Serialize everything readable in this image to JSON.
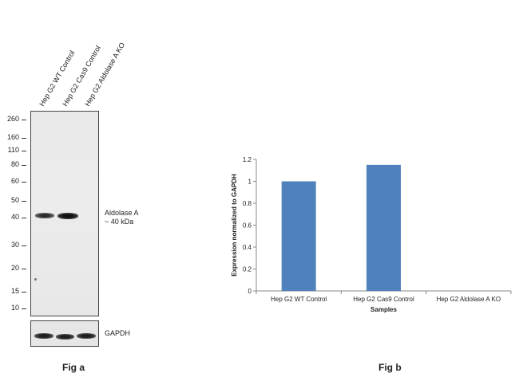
{
  "fig_a": {
    "caption": "Fig a",
    "lanes": [
      "Hep G2 WT Control",
      "Hep G2 Cas9 Control",
      "Hep G2 Aldolase A KO"
    ],
    "mw_markers": [
      "260",
      "160",
      "110",
      "80",
      "60",
      "50",
      "40",
      "30",
      "20",
      "15",
      "10"
    ],
    "band_label_line1": "Aldolase A",
    "band_label_line2": "~ 40 kDa",
    "loading_control_label": "GAPDH"
  },
  "fig_b": {
    "caption": "Fig b"
  },
  "chart_data": {
    "type": "bar",
    "categories": [
      "Hep G2 WT Control",
      "Hep G2 Cas9 Control",
      "Hep G2 Aldolase A KO"
    ],
    "values": [
      1.0,
      1.15,
      0.0
    ],
    "ylim": [
      0,
      1.2
    ],
    "yticks": [
      "0",
      "0.2",
      "0.4",
      "0.6",
      "0.8",
      "1",
      "1.2"
    ],
    "xlabel": "Samples",
    "ylabel": "Expression normalized to GAPDH",
    "bar_color": "#4f81bd",
    "grid": false,
    "legend": false
  }
}
